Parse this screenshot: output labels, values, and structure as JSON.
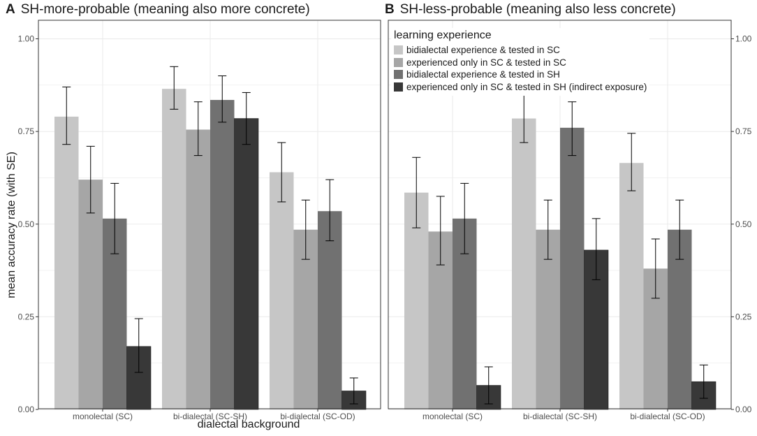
{
  "chart_data": {
    "type": "bar",
    "ylabel": "mean accuracy rate (with SE)",
    "xlabel": "dialectal background",
    "ylim": [
      0,
      1.05
    ],
    "yticks": [
      "0.00",
      "0.25",
      "0.50",
      "0.75",
      "1.00"
    ],
    "categories": [
      "monolectal (SC)",
      "bi-dialectal (SC-SH)",
      "bi-dialectal (SC-OD)"
    ],
    "legend_title": "learning experience",
    "legend_position": "top-right",
    "series": [
      {
        "name": "bidialectal experience & tested in SC",
        "color": "#c6c6c6"
      },
      {
        "name": "experienced only in SC & tested in SC",
        "color": "#a6a6a6"
      },
      {
        "name": "bidialectal experience & tested in SH",
        "color": "#717171"
      },
      {
        "name": "experienced only in SC & tested in SH (indirect exposure)",
        "color": "#383838"
      }
    ],
    "panels": [
      {
        "label": "A",
        "title": "SH-more-probable (meaning also more concrete)",
        "values": [
          [
            0.79,
            0.62,
            0.515,
            0.17
          ],
          [
            0.865,
            0.755,
            0.835,
            0.785
          ],
          [
            0.64,
            0.485,
            0.535,
            0.05
          ]
        ],
        "errors": [
          [
            [
              0.715,
              0.87
            ],
            [
              0.53,
              0.71
            ],
            [
              0.42,
              0.61
            ],
            [
              0.1,
              0.245
            ]
          ],
          [
            [
              0.81,
              0.925
            ],
            [
              0.685,
              0.83
            ],
            [
              0.775,
              0.9
            ],
            [
              0.715,
              0.855
            ]
          ],
          [
            [
              0.56,
              0.72
            ],
            [
              0.405,
              0.565
            ],
            [
              0.455,
              0.62
            ],
            [
              0.015,
              0.085
            ]
          ]
        ]
      },
      {
        "label": "B",
        "title": "SH-less-probable (meaning also less concrete)",
        "values": [
          [
            0.585,
            0.48,
            0.515,
            0.065
          ],
          [
            0.785,
            0.485,
            0.76,
            0.43
          ],
          [
            0.665,
            0.38,
            0.485,
            0.075
          ]
        ],
        "errors": [
          [
            [
              0.49,
              0.68
            ],
            [
              0.39,
              0.575
            ],
            [
              0.42,
              0.61
            ],
            [
              0.015,
              0.115
            ]
          ],
          [
            [
              0.72,
              0.87
            ],
            [
              0.405,
              0.565
            ],
            [
              0.685,
              0.83
            ],
            [
              0.35,
              0.515
            ]
          ],
          [
            [
              0.59,
              0.745
            ],
            [
              0.3,
              0.46
            ],
            [
              0.405,
              0.565
            ],
            [
              0.03,
              0.12
            ]
          ]
        ]
      }
    ]
  }
}
